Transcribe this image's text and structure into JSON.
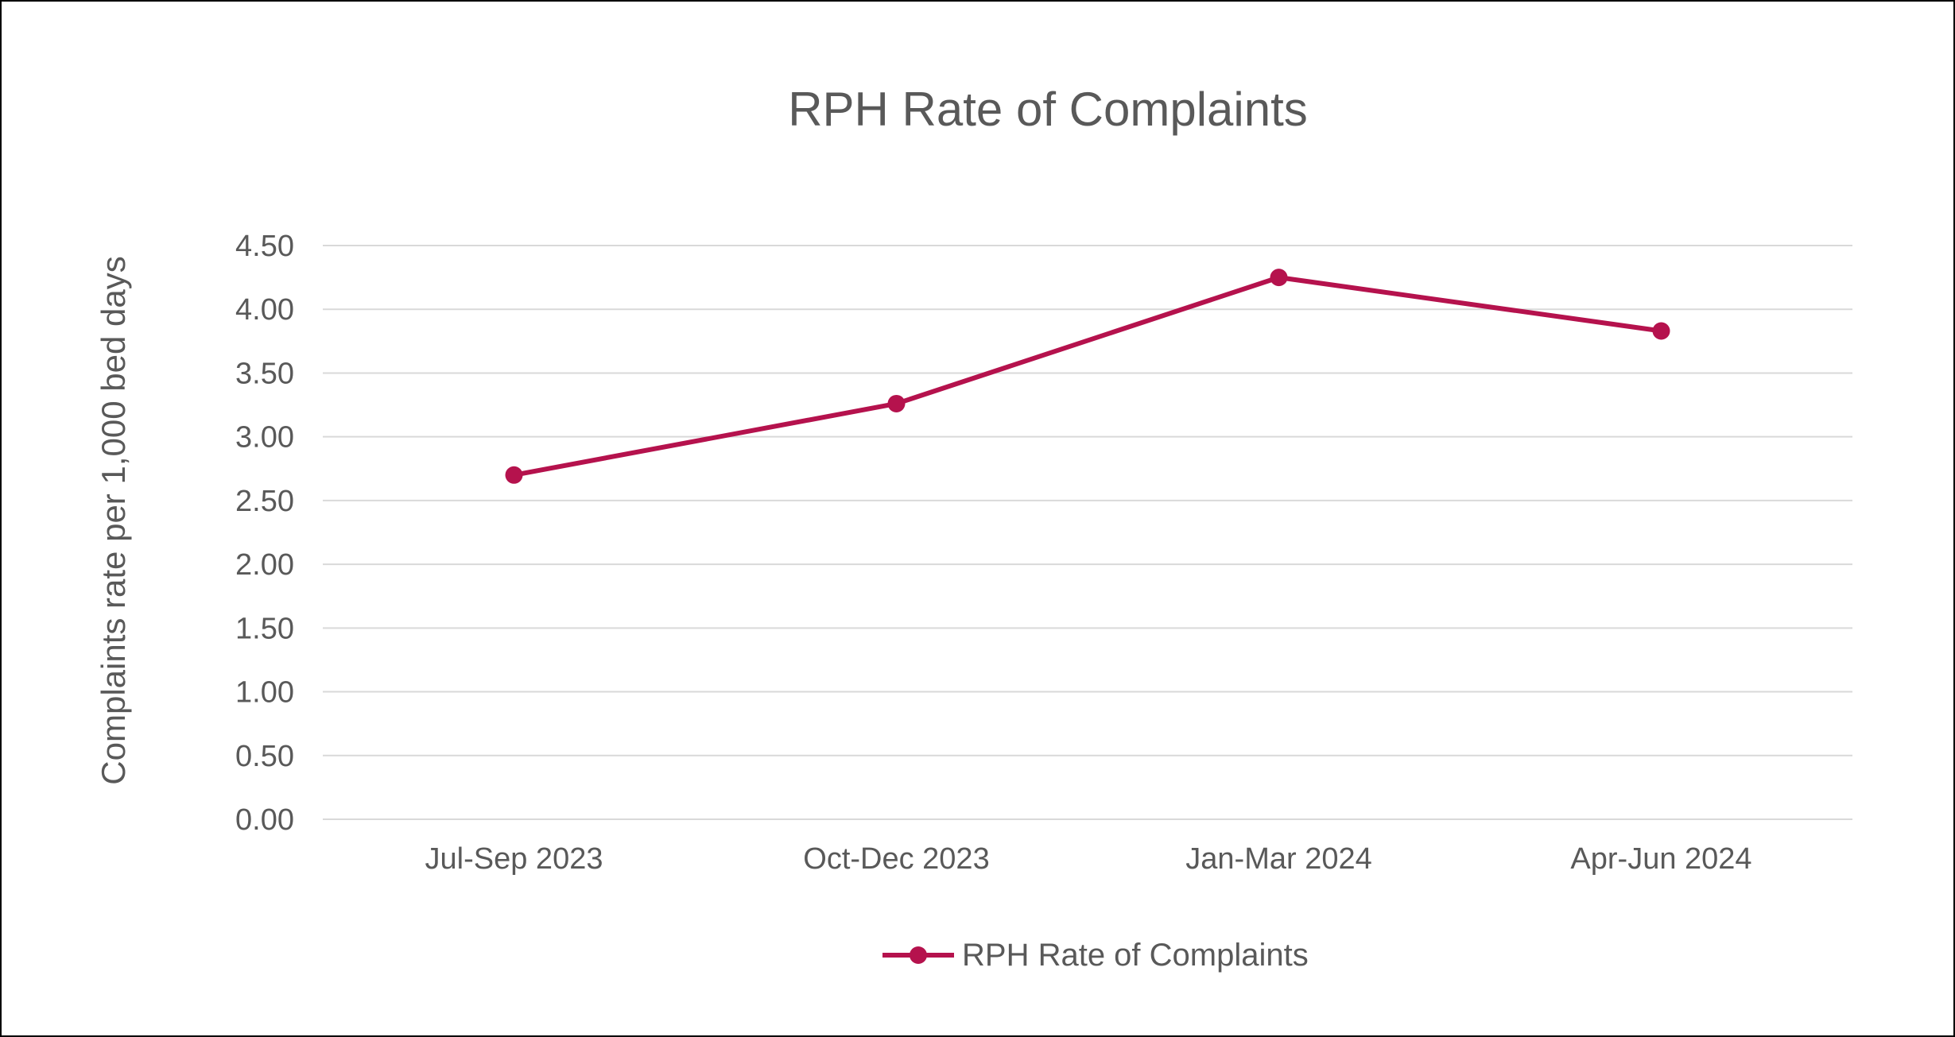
{
  "chart_data": {
    "type": "line",
    "title": "RPH Rate of Complaints",
    "xlabel": "",
    "ylabel": "Complaints rate  per 1,000  bed days",
    "categories": [
      "Jul-Sep 2023",
      "Oct-Dec 2023",
      "Jan-Mar 2024",
      "Apr-Jun 2024"
    ],
    "series": [
      {
        "name": "RPH Rate of Complaints",
        "values": [
          2.7,
          3.26,
          4.25,
          3.83
        ]
      }
    ],
    "ylim": [
      0,
      4.5
    ],
    "yticks": [
      "0.00",
      "0.50",
      "1.00",
      "1.50",
      "2.00",
      "2.50",
      "3.00",
      "3.50",
      "4.00",
      "4.50"
    ],
    "grid": true,
    "legend_position": "bottom",
    "colors": {
      "series": "#B5124D",
      "grid": "#D9D9D9",
      "text": "#595959",
      "frame": "#000000"
    }
  }
}
